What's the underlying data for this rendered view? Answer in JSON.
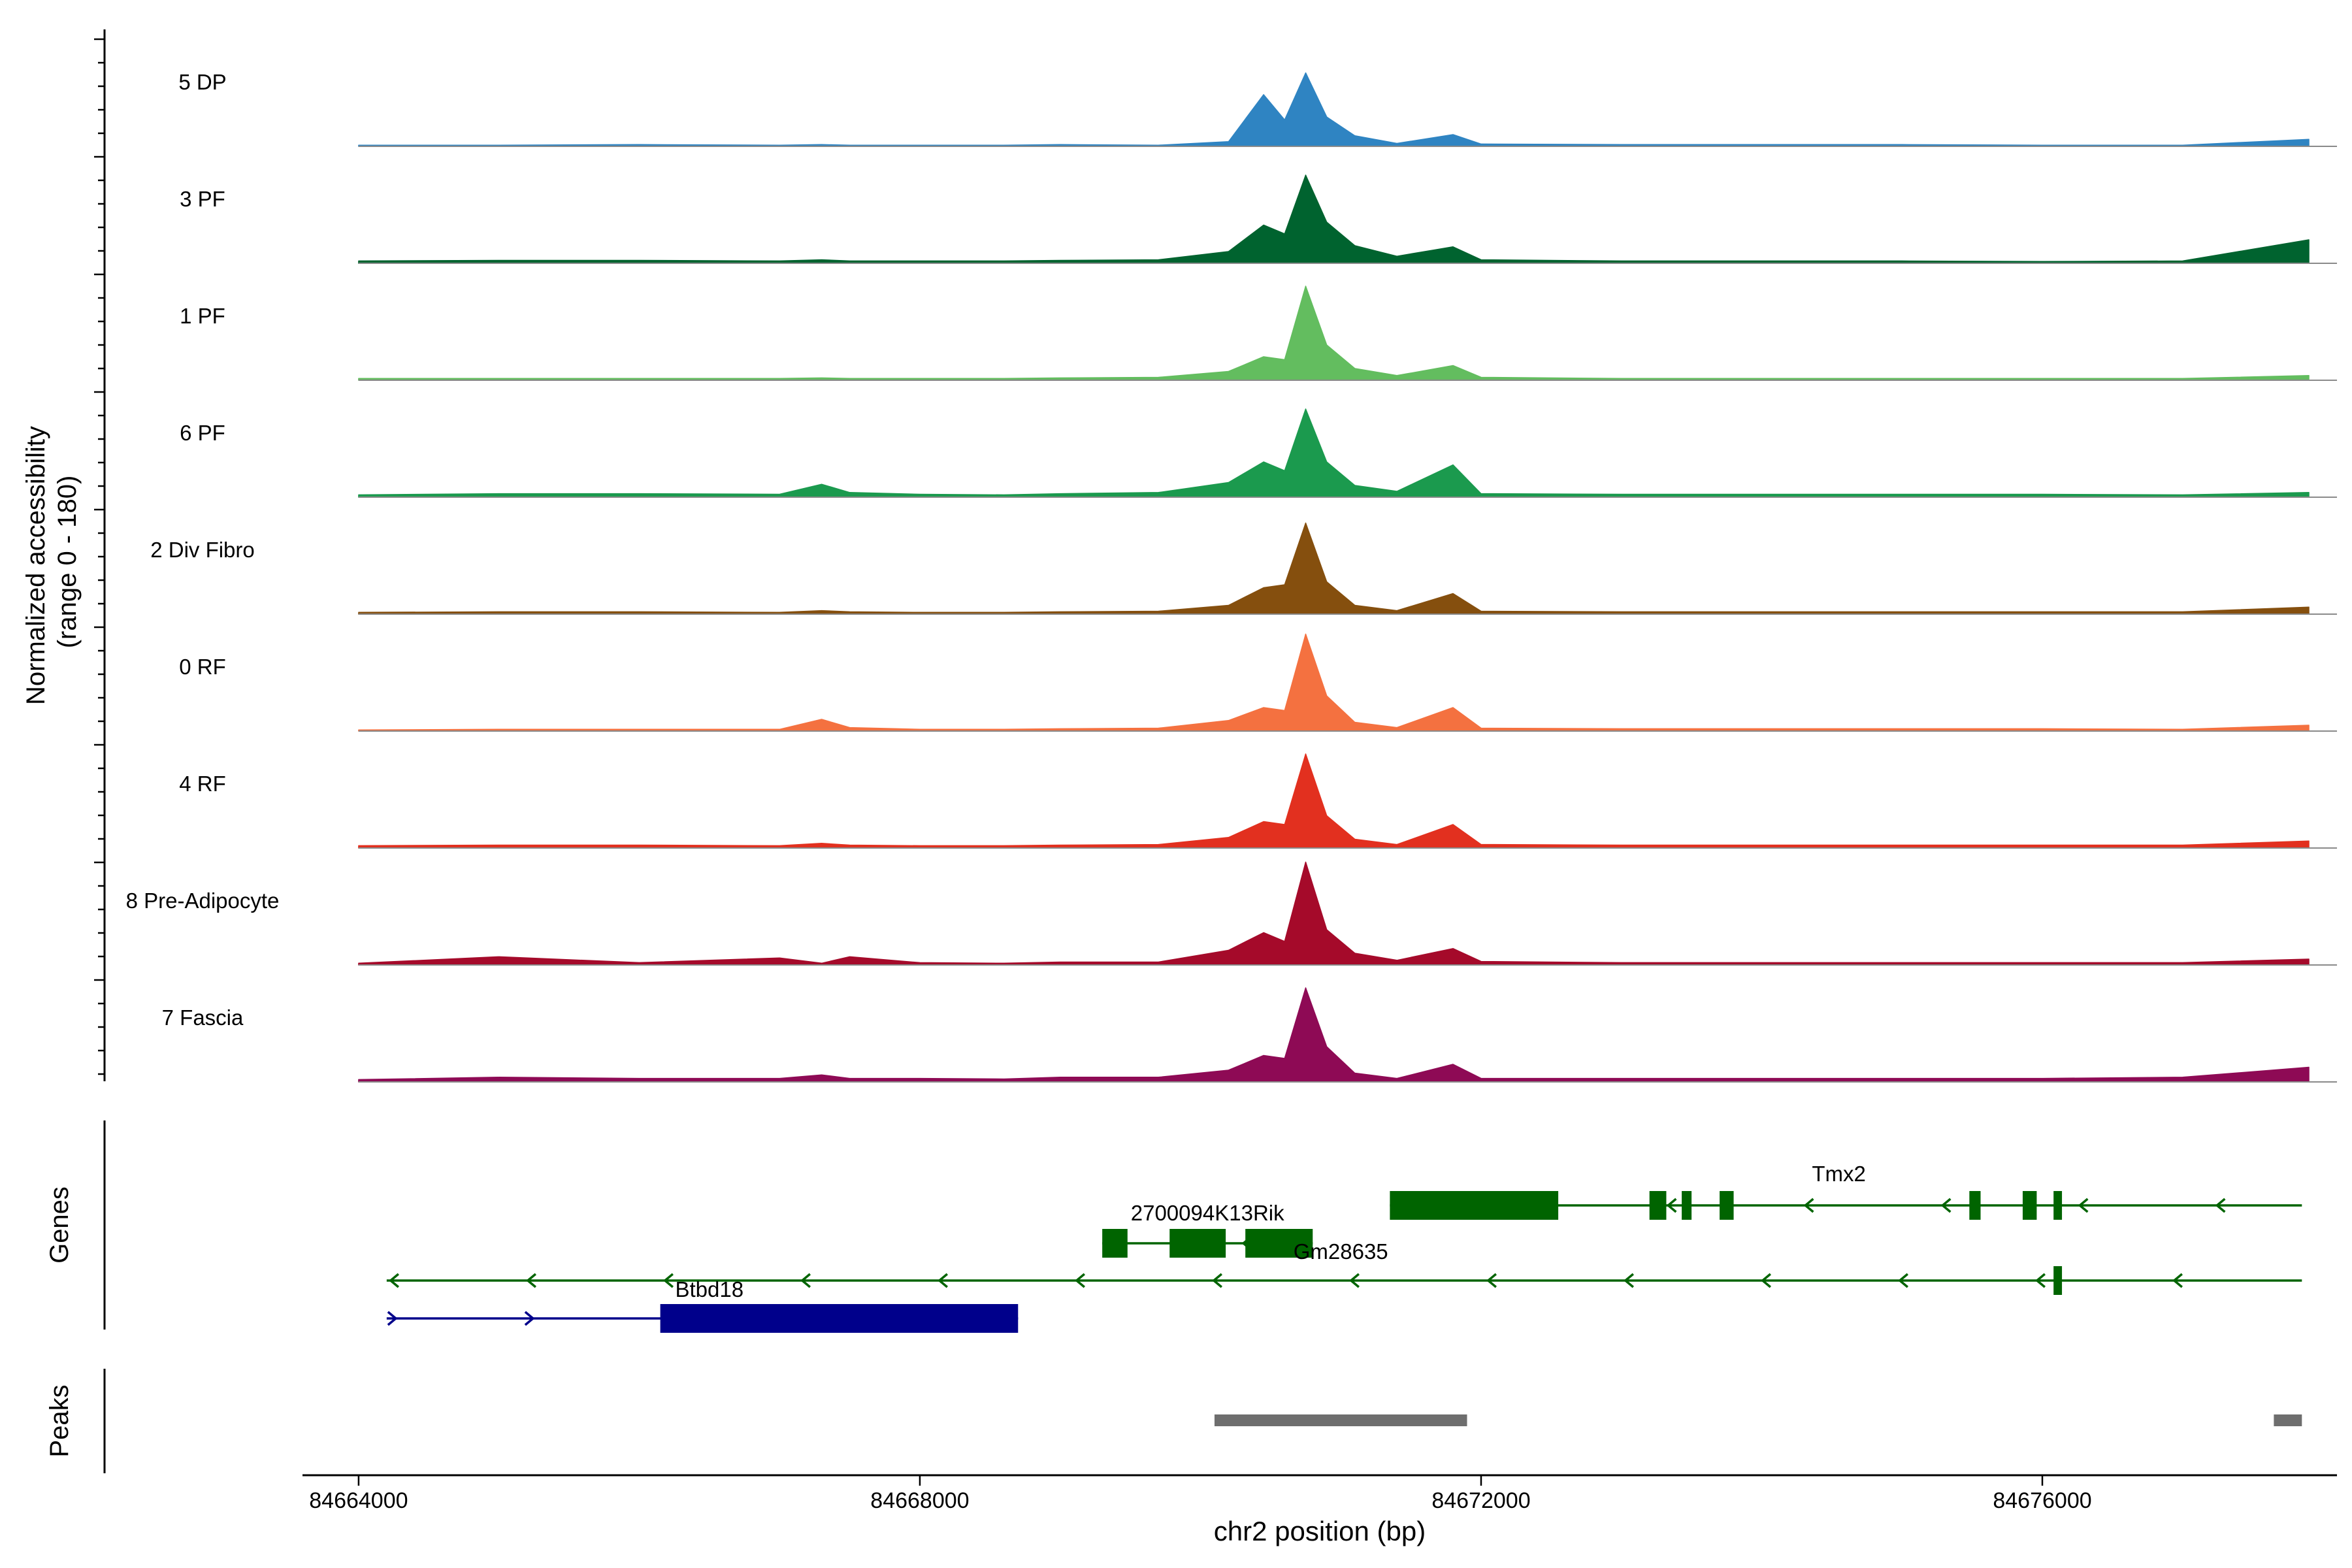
{
  "chart_data": {
    "type": "area",
    "y_axis_label_line1": "Normalized accessibility",
    "y_axis_label_line2": "(range 0 - 180)",
    "ylim": [
      0,
      180
    ],
    "xlabel": "chr2 position (bp)",
    "xlim": [
      84663600,
      84678100
    ],
    "x_ticks": [
      84664000,
      84668000,
      84672000,
      84676000
    ],
    "x_tick_labels": [
      "84664000",
      "84668000",
      "84672000",
      "84676000"
    ],
    "grid": false,
    "positions": [
      84664000,
      84665000,
      84666000,
      84667000,
      84667300,
      84667500,
      84668000,
      84668600,
      84669000,
      84669700,
      84670200,
      84670450,
      84670600,
      84670750,
      84670900,
      84671100,
      84671400,
      84671800,
      84672000,
      84673000,
      84674000,
      84675000,
      84676000,
      84677000,
      84677900
    ],
    "tracks": [
      {
        "name": "5 DP",
        "color": "#2f84c2",
        "values": [
          2,
          2,
          3,
          2,
          3,
          2,
          2,
          2,
          3,
          2,
          8,
          88,
          45,
          125,
          50,
          18,
          5,
          20,
          4,
          3,
          3,
          3,
          2,
          2,
          12
        ]
      },
      {
        "name": "3 PF",
        "color": "#00632f",
        "values": [
          4,
          5,
          5,
          4,
          6,
          4,
          4,
          4,
          5,
          6,
          20,
          65,
          50,
          150,
          70,
          30,
          12,
          28,
          6,
          4,
          4,
          4,
          3,
          4,
          40
        ]
      },
      {
        "name": "1 PF",
        "color": "#63bd5f",
        "values": [
          3,
          3,
          3,
          3,
          4,
          3,
          3,
          3,
          4,
          5,
          15,
          40,
          35,
          160,
          60,
          20,
          8,
          25,
          5,
          3,
          3,
          3,
          3,
          3,
          8
        ]
      },
      {
        "name": "6 PF",
        "color": "#1b9a4e",
        "values": [
          4,
          6,
          6,
          5,
          22,
          8,
          5,
          4,
          6,
          8,
          25,
          60,
          45,
          150,
          60,
          20,
          10,
          55,
          6,
          5,
          5,
          5,
          5,
          4,
          8
        ]
      },
      {
        "name": "2 Div Fibro",
        "color": "#854f0e",
        "values": [
          3,
          4,
          4,
          3,
          6,
          4,
          3,
          3,
          4,
          5,
          15,
          45,
          50,
          155,
          55,
          15,
          6,
          35,
          5,
          4,
          4,
          4,
          4,
          4,
          12
        ]
      },
      {
        "name": "0 RF",
        "color": "#f47140",
        "values": [
          2,
          3,
          3,
          3,
          20,
          6,
          3,
          3,
          4,
          5,
          18,
          40,
          35,
          165,
          60,
          15,
          6,
          40,
          5,
          4,
          4,
          4,
          4,
          3,
          10
        ]
      },
      {
        "name": "4 RF",
        "color": "#e2301f",
        "values": [
          4,
          5,
          5,
          4,
          8,
          5,
          4,
          4,
          5,
          6,
          18,
          45,
          40,
          160,
          55,
          15,
          6,
          40,
          6,
          5,
          5,
          5,
          5,
          5,
          12
        ]
      },
      {
        "name": "8 Pre-Adipocyte",
        "color": "#a50a2a",
        "values": [
          3,
          14,
          4,
          12,
          3,
          14,
          4,
          3,
          5,
          5,
          25,
          55,
          40,
          175,
          60,
          20,
          8,
          28,
          6,
          4,
          4,
          4,
          4,
          4,
          10
        ]
      },
      {
        "name": "7 Fascia",
        "color": "#8e0a55",
        "values": [
          4,
          8,
          6,
          6,
          12,
          6,
          6,
          5,
          8,
          8,
          20,
          45,
          40,
          160,
          60,
          15,
          6,
          30,
          6,
          6,
          6,
          6,
          6,
          8,
          25
        ]
      }
    ],
    "genes_axis_label": "Genes",
    "genes": [
      {
        "name": "Tmx2",
        "color": "#006400",
        "strand": "-",
        "start": 84671350,
        "end": 84677850,
        "label_x": 84674550,
        "exons": [
          [
            84671350,
            84672550
          ],
          [
            84673200,
            84673320
          ],
          [
            84673430,
            84673500
          ],
          [
            84673700,
            84673800
          ],
          [
            84675480,
            84675560
          ],
          [
            84675860,
            84675960
          ],
          [
            84676080,
            84676140
          ]
        ]
      },
      {
        "name": "2700094K13Rik",
        "color": "#006400",
        "strand": "-",
        "start": 84669300,
        "end": 84670800,
        "label_x": 84670050,
        "exons": [
          [
            84669300,
            84669480
          ],
          [
            84669780,
            84670180
          ],
          [
            84670320,
            84670800
          ]
        ]
      },
      {
        "name": "Gm28635",
        "color": "#006400",
        "strand": "-",
        "start": 84664200,
        "end": 84677850,
        "label_x": 84671000,
        "exons": [
          [
            84676080,
            84676140
          ]
        ]
      },
      {
        "name": "Btbd18",
        "color": "#00008b",
        "strand": "+",
        "start": 84664200,
        "end": 84668700,
        "label_x": 84666500,
        "exons": [
          [
            84666150,
            84668700
          ]
        ]
      }
    ],
    "peaks_axis_label": "Peaks",
    "peaks": [
      {
        "start": 84670100,
        "end": 84671900,
        "color": "#6e6e6e"
      },
      {
        "start": 84677650,
        "end": 84677850,
        "color": "#6e6e6e"
      }
    ]
  }
}
